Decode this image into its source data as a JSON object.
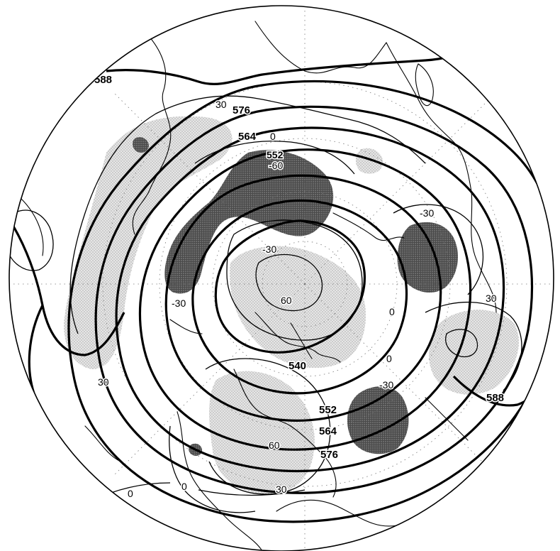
{
  "height_contour_labels": [
    {
      "id": "588-west",
      "text": "588"
    },
    {
      "id": "576-top",
      "text": "576"
    },
    {
      "id": "564-top",
      "text": "564"
    },
    {
      "id": "552-top",
      "text": "552"
    },
    {
      "id": "540-center",
      "text": "540"
    },
    {
      "id": "552-right",
      "text": "552"
    },
    {
      "id": "564-right",
      "text": "564"
    },
    {
      "id": "576-right",
      "text": "576"
    },
    {
      "id": "588-east",
      "text": "588"
    }
  ],
  "anomaly_contour_labels": [
    {
      "id": "a-30-top",
      "text": "30"
    },
    {
      "id": "a0-top",
      "text": "0"
    },
    {
      "id": "a-60-top",
      "text": "-60"
    },
    {
      "id": "a-30-northcenter",
      "text": "-30"
    },
    {
      "id": "a60-center",
      "text": "60"
    },
    {
      "id": "a-30-west",
      "text": "-30"
    },
    {
      "id": "a-30-east",
      "text": "-30"
    },
    {
      "id": "a30-east",
      "text": "30"
    },
    {
      "id": "a0-east",
      "text": "0"
    },
    {
      "id": "a0-southeast",
      "text": "0"
    },
    {
      "id": "a-30-southeast",
      "text": "-30"
    },
    {
      "id": "a30-southwest",
      "text": "30"
    },
    {
      "id": "a60-south",
      "text": "60"
    },
    {
      "id": "a30-bottom",
      "text": "30"
    },
    {
      "id": "a0-bottomleft",
      "text": "0"
    },
    {
      "id": "a0-bottomcenter",
      "text": "0"
    }
  ]
}
